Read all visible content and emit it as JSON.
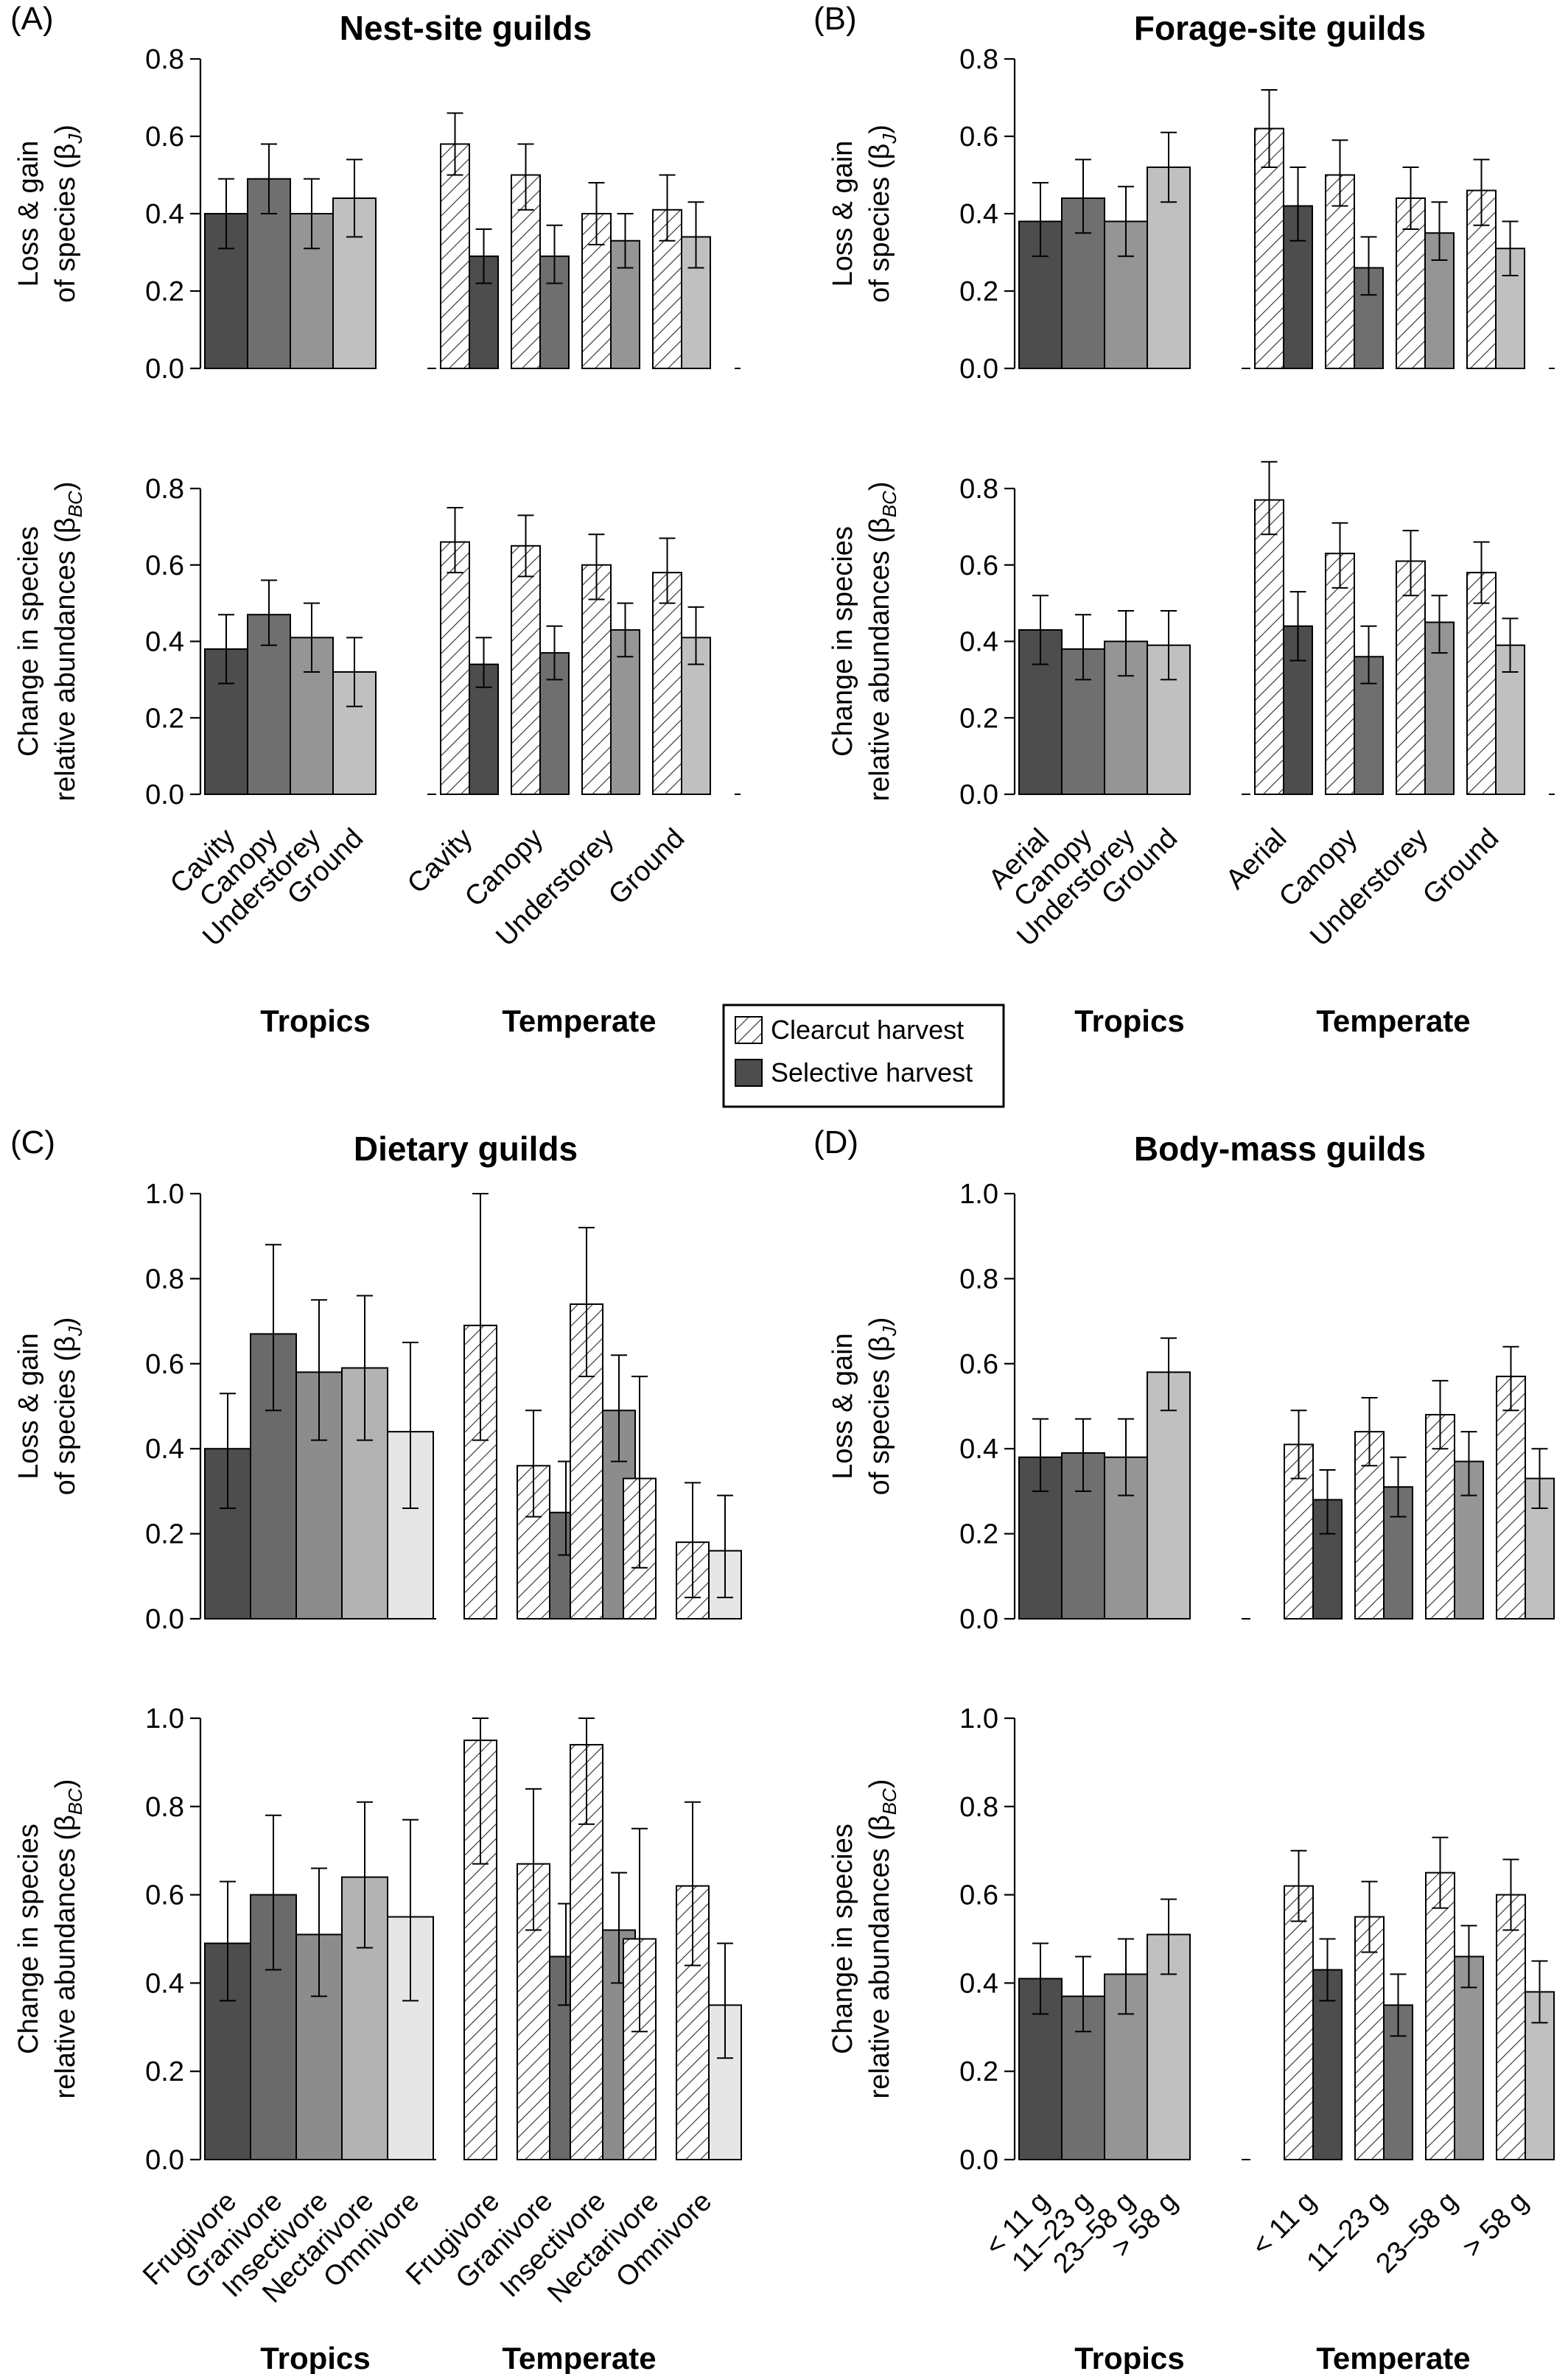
{
  "legend": {
    "items": [
      {
        "label": "Clearcut harvest",
        "pattern": "hatch"
      },
      {
        "label": "Selective harvest",
        "pattern": "solid"
      }
    ]
  },
  "chart_data": [
    {
      "type": "bar",
      "panel": "(A)",
      "title": "Nest-site guilds",
      "group_labels": [
        "Tropics",
        "Temperate"
      ],
      "categories": [
        "Cavity",
        "Canopy",
        "Understorey",
        "Ground"
      ],
      "colors": [
        "#4d4d4d",
        "#6f6f6f",
        "#959595",
        "#c0c0c0"
      ],
      "ylim": [
        0,
        0.8
      ],
      "yticks": [
        "0.0",
        "0.2",
        "0.4",
        "0.6",
        "0.8"
      ],
      "subplots": [
        {
          "ylabel": [
            "Loss & gain",
            "of species (β",
            "J",
            ")"
          ],
          "tropics": [
            {
              "v": 0.4,
              "lo": 0.31,
              "hi": 0.49
            },
            {
              "v": 0.49,
              "lo": 0.4,
              "hi": 0.58
            },
            {
              "v": 0.4,
              "lo": 0.31,
              "hi": 0.49
            },
            {
              "v": 0.44,
              "lo": 0.34,
              "hi": 0.54
            }
          ],
          "temperate_clearcut": [
            {
              "v": 0.58,
              "lo": 0.5,
              "hi": 0.66
            },
            {
              "v": 0.5,
              "lo": 0.41,
              "hi": 0.58
            },
            {
              "v": 0.4,
              "lo": 0.32,
              "hi": 0.48
            },
            {
              "v": 0.41,
              "lo": 0.33,
              "hi": 0.5
            }
          ],
          "temperate_selective": [
            {
              "v": 0.29,
              "lo": 0.22,
              "hi": 0.36
            },
            {
              "v": 0.29,
              "lo": 0.22,
              "hi": 0.37
            },
            {
              "v": 0.33,
              "lo": 0.26,
              "hi": 0.4
            },
            {
              "v": 0.34,
              "lo": 0.26,
              "hi": 0.43
            }
          ]
        },
        {
          "ylabel": [
            "Change in species",
            "relative abundances (β",
            "BC",
            ")"
          ],
          "tropics": [
            {
              "v": 0.38,
              "lo": 0.29,
              "hi": 0.47
            },
            {
              "v": 0.47,
              "lo": 0.39,
              "hi": 0.56
            },
            {
              "v": 0.41,
              "lo": 0.32,
              "hi": 0.5
            },
            {
              "v": 0.32,
              "lo": 0.23,
              "hi": 0.41
            }
          ],
          "temperate_clearcut": [
            {
              "v": 0.66,
              "lo": 0.58,
              "hi": 0.75
            },
            {
              "v": 0.65,
              "lo": 0.57,
              "hi": 0.73
            },
            {
              "v": 0.6,
              "lo": 0.51,
              "hi": 0.68
            },
            {
              "v": 0.58,
              "lo": 0.5,
              "hi": 0.67
            }
          ],
          "temperate_selective": [
            {
              "v": 0.34,
              "lo": 0.28,
              "hi": 0.41
            },
            {
              "v": 0.37,
              "lo": 0.3,
              "hi": 0.44
            },
            {
              "v": 0.43,
              "lo": 0.36,
              "hi": 0.5
            },
            {
              "v": 0.41,
              "lo": 0.34,
              "hi": 0.49
            }
          ]
        }
      ]
    },
    {
      "type": "bar",
      "panel": "(B)",
      "title": "Forage-site guilds",
      "group_labels": [
        "Tropics",
        "Temperate"
      ],
      "categories": [
        "Aerial",
        "Canopy",
        "Understorey",
        "Ground"
      ],
      "colors": [
        "#4d4d4d",
        "#6f6f6f",
        "#959595",
        "#c0c0c0"
      ],
      "ylim": [
        0,
        0.8
      ],
      "yticks": [
        "0.0",
        "0.2",
        "0.4",
        "0.6",
        "0.8"
      ],
      "subplots": [
        {
          "ylabel": [
            "Loss & gain",
            "of species (β",
            "J",
            ")"
          ],
          "tropics": [
            {
              "v": 0.38,
              "lo": 0.29,
              "hi": 0.48
            },
            {
              "v": 0.44,
              "lo": 0.35,
              "hi": 0.54
            },
            {
              "v": 0.38,
              "lo": 0.29,
              "hi": 0.47
            },
            {
              "v": 0.52,
              "lo": 0.43,
              "hi": 0.61
            }
          ],
          "temperate_clearcut": [
            {
              "v": 0.62,
              "lo": 0.52,
              "hi": 0.72
            },
            {
              "v": 0.5,
              "lo": 0.42,
              "hi": 0.59
            },
            {
              "v": 0.44,
              "lo": 0.36,
              "hi": 0.52
            },
            {
              "v": 0.46,
              "lo": 0.37,
              "hi": 0.54
            }
          ],
          "temperate_selective": [
            {
              "v": 0.42,
              "lo": 0.33,
              "hi": 0.52
            },
            {
              "v": 0.26,
              "lo": 0.19,
              "hi": 0.34
            },
            {
              "v": 0.35,
              "lo": 0.28,
              "hi": 0.43
            },
            {
              "v": 0.31,
              "lo": 0.24,
              "hi": 0.38
            }
          ]
        },
        {
          "ylabel": [
            "Change in species",
            "relative abundances (β",
            "BC",
            ")"
          ],
          "tropics": [
            {
              "v": 0.43,
              "lo": 0.34,
              "hi": 0.52
            },
            {
              "v": 0.38,
              "lo": 0.3,
              "hi": 0.47
            },
            {
              "v": 0.4,
              "lo": 0.31,
              "hi": 0.48
            },
            {
              "v": 0.39,
              "lo": 0.3,
              "hi": 0.48
            }
          ],
          "temperate_clearcut": [
            {
              "v": 0.77,
              "lo": 0.68,
              "hi": 0.87
            },
            {
              "v": 0.63,
              "lo": 0.54,
              "hi": 0.71
            },
            {
              "v": 0.61,
              "lo": 0.52,
              "hi": 0.69
            },
            {
              "v": 0.58,
              "lo": 0.5,
              "hi": 0.66
            }
          ],
          "temperate_selective": [
            {
              "v": 0.44,
              "lo": 0.35,
              "hi": 0.53
            },
            {
              "v": 0.36,
              "lo": 0.29,
              "hi": 0.44
            },
            {
              "v": 0.45,
              "lo": 0.37,
              "hi": 0.52
            },
            {
              "v": 0.39,
              "lo": 0.32,
              "hi": 0.46
            }
          ]
        }
      ]
    },
    {
      "type": "bar",
      "panel": "(C)",
      "title": "Dietary guilds",
      "group_labels": [
        "Tropics",
        "Temperate"
      ],
      "categories": [
        "Frugivore",
        "Granivore",
        "Insectivore",
        "Nectarivore",
        "Omnivore"
      ],
      "colors": [
        "#4d4d4d",
        "#6a6a6a",
        "#8c8c8c",
        "#b3b3b3",
        "#e6e6e6"
      ],
      "ylim": [
        0,
        1.0
      ],
      "yticks": [
        "0.0",
        "0.2",
        "0.4",
        "0.6",
        "0.8",
        "1.0"
      ],
      "subplots": [
        {
          "ylabel": [
            "Loss & gain",
            "of species (β",
            "J",
            ")"
          ],
          "tropics": [
            {
              "v": 0.4,
              "lo": 0.26,
              "hi": 0.53
            },
            {
              "v": 0.67,
              "lo": 0.49,
              "hi": 0.88
            },
            {
              "v": 0.58,
              "lo": 0.42,
              "hi": 0.75
            },
            {
              "v": 0.59,
              "lo": 0.42,
              "hi": 0.76
            },
            {
              "v": 0.44,
              "lo": 0.26,
              "hi": 0.65
            }
          ],
          "temperate_clearcut": [
            {
              "v": 0.69,
              "lo": 0.42,
              "hi": 1.0
            },
            {
              "v": 0.36,
              "lo": 0.24,
              "hi": 0.49
            },
            {
              "v": 0.74,
              "lo": 0.57,
              "hi": 0.92
            },
            {
              "v": 0.33,
              "lo": 0.12,
              "hi": 0.57
            },
            {
              "v": 0.18,
              "lo": 0.05,
              "hi": 0.32
            }
          ],
          "temperate_selective": [
            {
              "v": 0.0,
              "lo": 0.0,
              "hi": 0.0
            },
            {
              "v": 0.25,
              "lo": 0.15,
              "hi": 0.37
            },
            {
              "v": 0.49,
              "lo": 0.37,
              "hi": 0.62
            },
            {
              "v": 0.0,
              "lo": 0.0,
              "hi": 0.0
            },
            {
              "v": 0.16,
              "lo": 0.05,
              "hi": 0.29
            }
          ]
        },
        {
          "ylabel": [
            "Change in species",
            "relative abundances (β",
            "BC",
            ")"
          ],
          "tropics": [
            {
              "v": 0.49,
              "lo": 0.36,
              "hi": 0.63
            },
            {
              "v": 0.6,
              "lo": 0.43,
              "hi": 0.78
            },
            {
              "v": 0.51,
              "lo": 0.37,
              "hi": 0.66
            },
            {
              "v": 0.64,
              "lo": 0.48,
              "hi": 0.81
            },
            {
              "v": 0.55,
              "lo": 0.36,
              "hi": 0.77
            }
          ],
          "temperate_clearcut": [
            {
              "v": 0.95,
              "lo": 0.67,
              "hi": 1.0
            },
            {
              "v": 0.67,
              "lo": 0.52,
              "hi": 0.84
            },
            {
              "v": 0.94,
              "lo": 0.76,
              "hi": 1.0
            },
            {
              "v": 0.5,
              "lo": 0.29,
              "hi": 0.75
            },
            {
              "v": 0.62,
              "lo": 0.44,
              "hi": 0.81
            }
          ],
          "temperate_selective": [
            {
              "v": 0.0,
              "lo": 0.0,
              "hi": 0.0
            },
            {
              "v": 0.46,
              "lo": 0.35,
              "hi": 0.58
            },
            {
              "v": 0.52,
              "lo": 0.4,
              "hi": 0.65
            },
            {
              "v": 0.0,
              "lo": 0.0,
              "hi": 0.0
            },
            {
              "v": 0.35,
              "lo": 0.23,
              "hi": 0.49
            }
          ]
        }
      ]
    },
    {
      "type": "bar",
      "panel": "(D)",
      "title": "Body-mass guilds",
      "group_labels": [
        "Tropics",
        "Temperate"
      ],
      "categories": [
        "< 11 g",
        "11–23 g",
        "23–58 g",
        "> 58 g"
      ],
      "colors": [
        "#4d4d4d",
        "#6f6f6f",
        "#959595",
        "#c0c0c0"
      ],
      "ylim": [
        0,
        1.0
      ],
      "yticks": [
        "0.0",
        "0.2",
        "0.4",
        "0.6",
        "0.8",
        "1.0"
      ],
      "subplots": [
        {
          "ylabel": [
            "Loss & gain",
            "of species (β",
            "J",
            ")"
          ],
          "tropics": [
            {
              "v": 0.38,
              "lo": 0.3,
              "hi": 0.47
            },
            {
              "v": 0.39,
              "lo": 0.3,
              "hi": 0.47
            },
            {
              "v": 0.38,
              "lo": 0.29,
              "hi": 0.47
            },
            {
              "v": 0.58,
              "lo": 0.49,
              "hi": 0.66
            }
          ],
          "temperate_clearcut": [
            {
              "v": 0.41,
              "lo": 0.33,
              "hi": 0.49
            },
            {
              "v": 0.44,
              "lo": 0.36,
              "hi": 0.52
            },
            {
              "v": 0.48,
              "lo": 0.4,
              "hi": 0.56
            },
            {
              "v": 0.57,
              "lo": 0.49,
              "hi": 0.64
            }
          ],
          "temperate_selective": [
            {
              "v": 0.28,
              "lo": 0.2,
              "hi": 0.35
            },
            {
              "v": 0.31,
              "lo": 0.24,
              "hi": 0.38
            },
            {
              "v": 0.37,
              "lo": 0.29,
              "hi": 0.44
            },
            {
              "v": 0.33,
              "lo": 0.26,
              "hi": 0.4
            }
          ]
        },
        {
          "ylabel": [
            "Change in species",
            "relative abundances (β",
            "BC",
            ")"
          ],
          "tropics": [
            {
              "v": 0.41,
              "lo": 0.33,
              "hi": 0.49
            },
            {
              "v": 0.37,
              "lo": 0.29,
              "hi": 0.46
            },
            {
              "v": 0.42,
              "lo": 0.33,
              "hi": 0.5
            },
            {
              "v": 0.51,
              "lo": 0.42,
              "hi": 0.59
            }
          ],
          "temperate_clearcut": [
            {
              "v": 0.62,
              "lo": 0.54,
              "hi": 0.7
            },
            {
              "v": 0.55,
              "lo": 0.47,
              "hi": 0.63
            },
            {
              "v": 0.65,
              "lo": 0.57,
              "hi": 0.73
            },
            {
              "v": 0.6,
              "lo": 0.52,
              "hi": 0.68
            }
          ],
          "temperate_selective": [
            {
              "v": 0.43,
              "lo": 0.36,
              "hi": 0.5
            },
            {
              "v": 0.35,
              "lo": 0.28,
              "hi": 0.42
            },
            {
              "v": 0.46,
              "lo": 0.39,
              "hi": 0.53
            },
            {
              "v": 0.38,
              "lo": 0.31,
              "hi": 0.45
            }
          ]
        }
      ]
    }
  ]
}
